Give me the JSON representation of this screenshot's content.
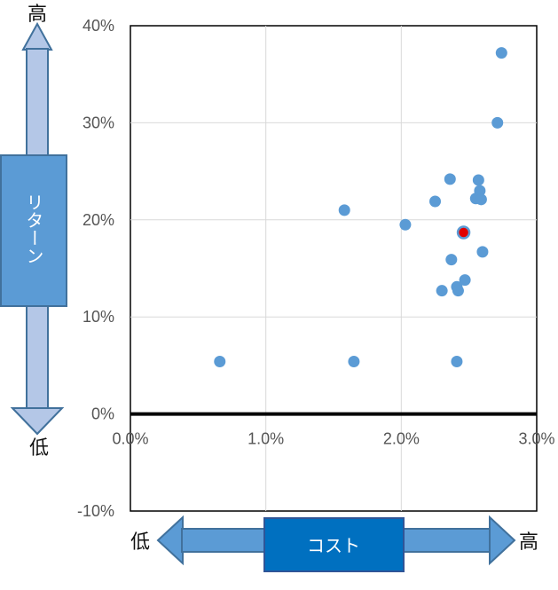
{
  "chart_data": {
    "type": "scatter",
    "x_ticks": [
      "0.0%",
      "1.0%",
      "2.0%",
      "3.0%"
    ],
    "y_ticks": [
      "-10%",
      "0%",
      "10%",
      "20%",
      "30%",
      "40%"
    ],
    "xlim": [
      0,
      3
    ],
    "ylim": [
      -10,
      40
    ],
    "grid": true,
    "points": [
      {
        "x": 0.66,
        "y": 5.4
      },
      {
        "x": 1.58,
        "y": 21.0
      },
      {
        "x": 1.65,
        "y": 5.4
      },
      {
        "x": 2.03,
        "y": 19.5
      },
      {
        "x": 2.25,
        "y": 21.9
      },
      {
        "x": 2.3,
        "y": 12.7
      },
      {
        "x": 2.36,
        "y": 24.2
      },
      {
        "x": 2.37,
        "y": 15.9
      },
      {
        "x": 2.41,
        "y": 13.1
      },
      {
        "x": 2.41,
        "y": 5.4
      },
      {
        "x": 2.42,
        "y": 12.7
      },
      {
        "x": 2.47,
        "y": 13.8
      },
      {
        "x": 2.55,
        "y": 22.2
      },
      {
        "x": 2.57,
        "y": 24.1
      },
      {
        "x": 2.58,
        "y": 23.0
      },
      {
        "x": 2.59,
        "y": 22.1
      },
      {
        "x": 2.6,
        "y": 16.7
      },
      {
        "x": 2.71,
        "y": 30.0
      },
      {
        "x": 2.74,
        "y": 37.2
      }
    ],
    "highlight_point": {
      "x": 2.46,
      "y": 18.7
    },
    "colors": {
      "point": "#5b9bd5",
      "highlight": "#e00000",
      "zero_line": "#000000",
      "grid": "#d9d9d9"
    }
  },
  "y_indicator": {
    "label": "リターン",
    "top": "高",
    "bottom": "低"
  },
  "x_indicator": {
    "label": "コスト",
    "left": "低",
    "right": "高"
  }
}
